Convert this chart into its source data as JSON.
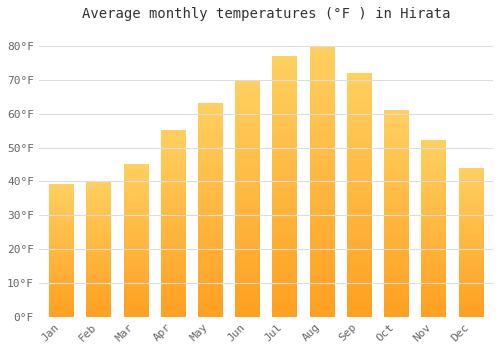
{
  "title": "Average monthly temperatures (°F ) in Hirata",
  "months": [
    "Jan",
    "Feb",
    "Mar",
    "Apr",
    "May",
    "Jun",
    "Jul",
    "Aug",
    "Sep",
    "Oct",
    "Nov",
    "Dec"
  ],
  "temperatures": [
    39,
    40,
    45,
    55,
    63,
    70,
    77,
    80,
    72,
    61,
    52,
    44
  ],
  "ylim": [
    0,
    85
  ],
  "yticks": [
    0,
    10,
    20,
    30,
    40,
    50,
    60,
    70,
    80
  ],
  "ytick_labels": [
    "0°F",
    "10°F",
    "20°F",
    "30°F",
    "40°F",
    "50°F",
    "60°F",
    "70°F",
    "80°F"
  ],
  "background_color": "#ffffff",
  "grid_color": "#dddddd",
  "title_fontsize": 10,
  "tick_fontsize": 8,
  "bar_color_main": "#FFA500",
  "bar_color_light": "#FFD060"
}
